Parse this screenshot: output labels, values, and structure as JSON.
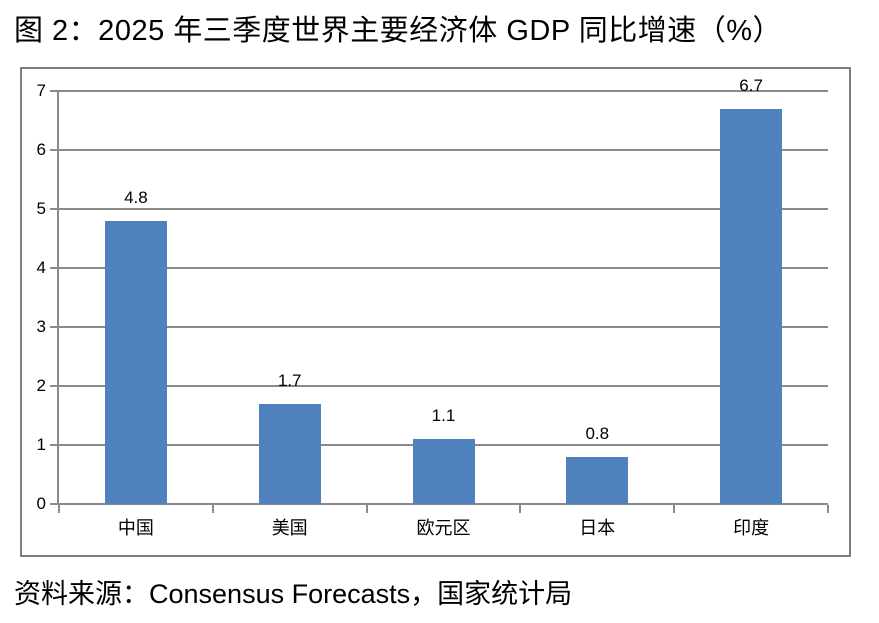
{
  "page": {
    "title": "图 2：2025 年三季度世界主要经济体 GDP 同比增速（%）",
    "source": "资料来源：Consensus Forecasts，国家统计局"
  },
  "colors": {
    "bar": "#4F81BD",
    "grid": "#8A8A8A",
    "chart_border": "#7F7F7F",
    "text": "#000000",
    "background": "#FFFFFF"
  },
  "chart_data": {
    "type": "bar",
    "title": "图 2：2025 年三季度世界主要经济体 GDP 同比增速（%）",
    "categories": [
      "中国",
      "美国",
      "欧元区",
      "日本",
      "印度"
    ],
    "values": [
      4.8,
      1.7,
      1.1,
      0.8,
      6.7
    ],
    "data_labels": [
      "4.8",
      "1.7",
      "1.1",
      "0.8",
      "6.7"
    ],
    "xlabel": "",
    "ylabel": "",
    "ylim": [
      0,
      7
    ],
    "ytick_step": 1,
    "yticks": [
      0,
      1,
      2,
      3,
      4,
      5,
      6,
      7
    ],
    "grid": true,
    "legend": false,
    "source": "资料来源：Consensus Forecasts，国家统计局"
  }
}
